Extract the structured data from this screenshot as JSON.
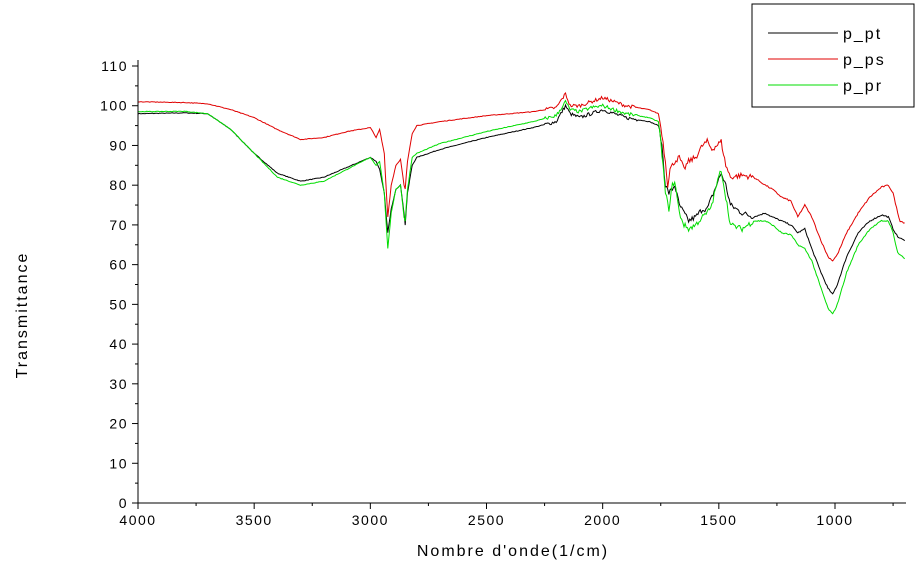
{
  "chart_data": {
    "type": "line",
    "title": "",
    "xlabel": "Nombre d'onde(1/cm)",
    "ylabel": "Transmittance",
    "xlim": [
      4000,
      700
    ],
    "ylim": [
      0,
      110
    ],
    "x_reversed": true,
    "x_ticks": [
      4000,
      3500,
      3000,
      2500,
      2000,
      1500,
      1000
    ],
    "y_ticks": [
      0,
      10,
      20,
      30,
      40,
      50,
      60,
      70,
      80,
      90,
      100,
      110
    ],
    "grid": false,
    "legend_position": "top-right",
    "series": [
      {
        "name": "p_pt",
        "color": "#000000",
        "points": [
          [
            4000,
            98
          ],
          [
            3800,
            98.2
          ],
          [
            3700,
            98
          ],
          [
            3600,
            94
          ],
          [
            3500,
            88
          ],
          [
            3400,
            83
          ],
          [
            3300,
            81
          ],
          [
            3200,
            82
          ],
          [
            3100,
            84.5
          ],
          [
            3000,
            87
          ],
          [
            2975,
            86
          ],
          [
            2960,
            84
          ],
          [
            2940,
            78
          ],
          [
            2925,
            68
          ],
          [
            2910,
            74
          ],
          [
            2890,
            79
          ],
          [
            2870,
            80
          ],
          [
            2855,
            73
          ],
          [
            2850,
            70
          ],
          [
            2840,
            78
          ],
          [
            2820,
            85
          ],
          [
            2800,
            87
          ],
          [
            2700,
            89
          ],
          [
            2500,
            92
          ],
          [
            2300,
            94.5
          ],
          [
            2200,
            96
          ],
          [
            2160,
            100
          ],
          [
            2140,
            98
          ],
          [
            2100,
            97
          ],
          [
            2050,
            98
          ],
          [
            2000,
            99
          ],
          [
            1950,
            98
          ],
          [
            1900,
            97
          ],
          [
            1800,
            96
          ],
          [
            1760,
            95
          ],
          [
            1745,
            90
          ],
          [
            1730,
            80
          ],
          [
            1715,
            78
          ],
          [
            1700,
            79
          ],
          [
            1690,
            80
          ],
          [
            1670,
            75
          ],
          [
            1650,
            73
          ],
          [
            1630,
            71
          ],
          [
            1600,
            72
          ],
          [
            1570,
            74
          ],
          [
            1550,
            74
          ],
          [
            1530,
            77
          ],
          [
            1510,
            80
          ],
          [
            1490,
            83
          ],
          [
            1470,
            80
          ],
          [
            1450,
            75
          ],
          [
            1400,
            73
          ],
          [
            1350,
            72
          ],
          [
            1300,
            73
          ],
          [
            1270,
            72
          ],
          [
            1230,
            71
          ],
          [
            1190,
            70
          ],
          [
            1160,
            68
          ],
          [
            1130,
            69
          ],
          [
            1100,
            64
          ],
          [
            1060,
            58
          ],
          [
            1030,
            54
          ],
          [
            1010,
            52.5
          ],
          [
            990,
            55
          ],
          [
            950,
            62
          ],
          [
            900,
            68
          ],
          [
            850,
            71
          ],
          [
            800,
            72.5
          ],
          [
            770,
            72
          ],
          [
            750,
            69
          ],
          [
            730,
            67
          ],
          [
            700,
            66
          ]
        ]
      },
      {
        "name": "p_ps",
        "color": "#e00000",
        "points": [
          [
            4000,
            101
          ],
          [
            3800,
            100.8
          ],
          [
            3700,
            100.5
          ],
          [
            3600,
            99
          ],
          [
            3500,
            97
          ],
          [
            3400,
            94
          ],
          [
            3300,
            91.5
          ],
          [
            3200,
            92
          ],
          [
            3100,
            93.5
          ],
          [
            3000,
            94.5
          ],
          [
            2975,
            92
          ],
          [
            2960,
            94
          ],
          [
            2940,
            88
          ],
          [
            2925,
            72
          ],
          [
            2910,
            80
          ],
          [
            2890,
            85
          ],
          [
            2870,
            86.5
          ],
          [
            2855,
            80
          ],
          [
            2850,
            79
          ],
          [
            2840,
            86
          ],
          [
            2820,
            93
          ],
          [
            2800,
            95
          ],
          [
            2700,
            96
          ],
          [
            2500,
            97.5
          ],
          [
            2300,
            98.5
          ],
          [
            2200,
            99.5
          ],
          [
            2160,
            103
          ],
          [
            2140,
            100
          ],
          [
            2100,
            100
          ],
          [
            2050,
            101
          ],
          [
            2000,
            102
          ],
          [
            1950,
            101
          ],
          [
            1900,
            100
          ],
          [
            1800,
            99
          ],
          [
            1760,
            98
          ],
          [
            1745,
            93
          ],
          [
            1730,
            86
          ],
          [
            1720,
            80
          ],
          [
            1710,
            84
          ],
          [
            1690,
            86
          ],
          [
            1670,
            87
          ],
          [
            1650,
            84
          ],
          [
            1630,
            86
          ],
          [
            1600,
            87
          ],
          [
            1570,
            90
          ],
          [
            1550,
            91
          ],
          [
            1530,
            89
          ],
          [
            1510,
            90
          ],
          [
            1490,
            91
          ],
          [
            1470,
            85
          ],
          [
            1450,
            82
          ],
          [
            1400,
            82.5
          ],
          [
            1350,
            82
          ],
          [
            1300,
            80
          ],
          [
            1270,
            79
          ],
          [
            1230,
            77
          ],
          [
            1190,
            76
          ],
          [
            1160,
            72
          ],
          [
            1130,
            75
          ],
          [
            1100,
            72
          ],
          [
            1060,
            66
          ],
          [
            1030,
            62
          ],
          [
            1010,
            61
          ],
          [
            990,
            62.5
          ],
          [
            950,
            68
          ],
          [
            900,
            73
          ],
          [
            850,
            77
          ],
          [
            800,
            79.5
          ],
          [
            770,
            80
          ],
          [
            750,
            78
          ],
          [
            730,
            73
          ],
          [
            720,
            71
          ],
          [
            700,
            70.5
          ]
        ]
      },
      {
        "name": "p_pr",
        "color": "#00dd00",
        "points": [
          [
            4000,
            98.5
          ],
          [
            3800,
            98.6
          ],
          [
            3700,
            98
          ],
          [
            3600,
            94
          ],
          [
            3500,
            88
          ],
          [
            3400,
            82
          ],
          [
            3300,
            80
          ],
          [
            3200,
            81
          ],
          [
            3100,
            84
          ],
          [
            3000,
            87
          ],
          [
            2975,
            85
          ],
          [
            2960,
            86
          ],
          [
            2940,
            78
          ],
          [
            2925,
            64
          ],
          [
            2910,
            73
          ],
          [
            2890,
            79
          ],
          [
            2870,
            80
          ],
          [
            2855,
            72
          ],
          [
            2850,
            71
          ],
          [
            2840,
            79
          ],
          [
            2820,
            87
          ],
          [
            2800,
            88
          ],
          [
            2700,
            90.5
          ],
          [
            2500,
            93.5
          ],
          [
            2300,
            96
          ],
          [
            2200,
            97.5
          ],
          [
            2160,
            101
          ],
          [
            2140,
            99
          ],
          [
            2100,
            98.5
          ],
          [
            2050,
            99.5
          ],
          [
            2000,
            100
          ],
          [
            1950,
            99
          ],
          [
            1900,
            98
          ],
          [
            1800,
            97
          ],
          [
            1760,
            96
          ],
          [
            1745,
            88
          ],
          [
            1730,
            78
          ],
          [
            1715,
            74
          ],
          [
            1700,
            80
          ],
          [
            1690,
            81
          ],
          [
            1670,
            73
          ],
          [
            1650,
            70
          ],
          [
            1630,
            69
          ],
          [
            1600,
            70
          ],
          [
            1570,
            72
          ],
          [
            1550,
            73
          ],
          [
            1530,
            75
          ],
          [
            1510,
            80
          ],
          [
            1490,
            84
          ],
          [
            1470,
            77
          ],
          [
            1450,
            70
          ],
          [
            1400,
            69
          ],
          [
            1350,
            71
          ],
          [
            1300,
            71
          ],
          [
            1270,
            70
          ],
          [
            1230,
            68
          ],
          [
            1190,
            67.5
          ],
          [
            1160,
            65
          ],
          [
            1130,
            64
          ],
          [
            1100,
            61
          ],
          [
            1060,
            54
          ],
          [
            1030,
            49
          ],
          [
            1010,
            47.5
          ],
          [
            990,
            50
          ],
          [
            950,
            58
          ],
          [
            900,
            65
          ],
          [
            850,
            69
          ],
          [
            800,
            71
          ],
          [
            770,
            71
          ],
          [
            750,
            68
          ],
          [
            730,
            63
          ],
          [
            700,
            61.5
          ]
        ]
      }
    ]
  }
}
